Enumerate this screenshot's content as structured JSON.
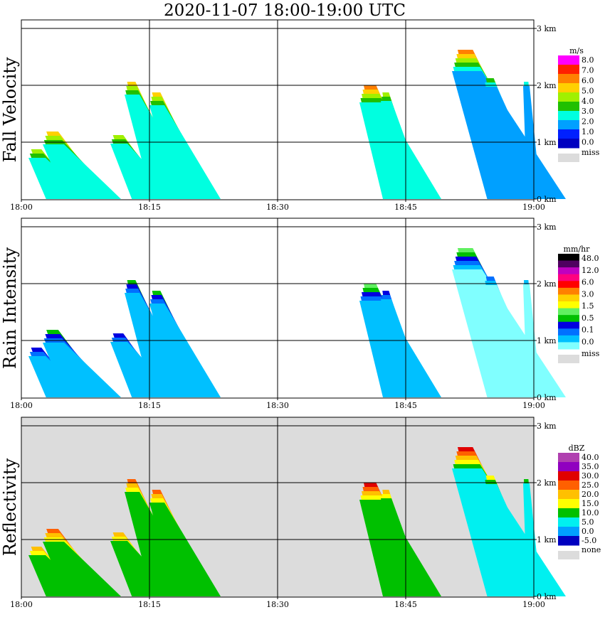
{
  "title": "2020-11-07   18:00-19:00 UTC",
  "time_axis": {
    "ticks": [
      "18:00",
      "18:15",
      "18:30",
      "18:45",
      "19:00"
    ]
  },
  "height_axis": {
    "ticks": [
      "0 km",
      "1 km",
      "2 km",
      "3 km"
    ]
  },
  "chart_data": [
    {
      "type": "heatmap",
      "ylabel": "Fall Velocity",
      "unit": "m/s",
      "background": "#ffffff",
      "legend": {
        "levels": [
          "8.0",
          "7.0",
          "6.0",
          "5.0",
          "4.0",
          "3.0",
          "2.0",
          "1.0",
          "0.0"
        ],
        "colors": [
          "#ff00ff",
          "#ff2000",
          "#ff8000",
          "#ffd000",
          "#a0f000",
          "#20c000",
          "#00ffe0",
          "#00a0ff",
          "#0020ff",
          "#0000c0"
        ],
        "missing_label": "miss",
        "missing_color": "#dcdcdc"
      },
      "xlim": [
        "18:00",
        "19:00"
      ],
      "ylim_km": [
        0,
        3
      ]
    },
    {
      "type": "heatmap",
      "ylabel": "Rain Intensity",
      "unit": "mm/hr",
      "background": "#ffffff",
      "legend": {
        "levels": [
          "48.0",
          "12.0",
          "6.0",
          "3.0",
          "1.5",
          "0.5",
          "0.1",
          "0.0"
        ],
        "colors": [
          "#000000",
          "#500060",
          "#c000c0",
          "#ff0080",
          "#ff0000",
          "#ff8000",
          "#ffd000",
          "#ffff00",
          "#60f060",
          "#00c000",
          "#0000e0",
          "#0070ff",
          "#00c0ff",
          "#80ffff"
        ],
        "missing_label": "miss",
        "missing_color": "#dcdcdc"
      },
      "xlim": [
        "18:00",
        "19:00"
      ],
      "ylim_km": [
        0,
        3
      ]
    },
    {
      "type": "heatmap",
      "ylabel": "Reflectivity",
      "unit": "dBZ",
      "background": "#dcdcdc",
      "legend": {
        "levels": [
          "40.0",
          "35.0",
          "30.0",
          "25.0",
          "20.0",
          "15.0",
          "10.0",
          "5.0",
          "0.0",
          "-5.0"
        ],
        "colors": [
          "#b040b0",
          "#9000c0",
          "#e00000",
          "#ff6000",
          "#ffc000",
          "#ffff00",
          "#00c000",
          "#00f0f0",
          "#00a0ff",
          "#0000c0"
        ],
        "missing_label": "none",
        "missing_color": "#dcdcdc"
      },
      "xlim": [
        "18:00",
        "19:00"
      ],
      "ylim_km": [
        0,
        3
      ]
    }
  ]
}
